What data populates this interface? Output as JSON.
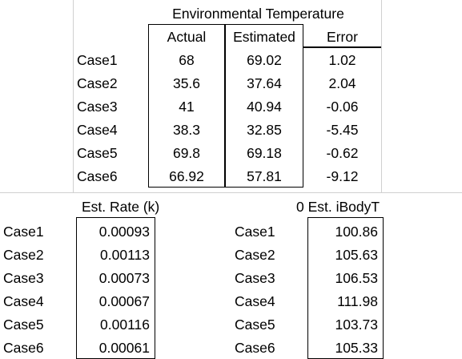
{
  "top_table": {
    "title": "Environmental Temperature",
    "col_actual": "Actual",
    "col_estimated": "Estimated",
    "col_error": "Error",
    "rows": [
      {
        "case": "Case1",
        "actual": "68",
        "estimated": "69.02",
        "error": "1.02"
      },
      {
        "case": "Case2",
        "actual": "35.6",
        "estimated": "37.64",
        "error": "2.04"
      },
      {
        "case": "Case3",
        "actual": "41",
        "estimated": "40.94",
        "error": "-0.06"
      },
      {
        "case": "Case4",
        "actual": "38.3",
        "estimated": "32.85",
        "error": "-5.45"
      },
      {
        "case": "Case5",
        "actual": "69.8",
        "estimated": "69.18",
        "error": "-0.62"
      },
      {
        "case": "Case6",
        "actual": "66.92",
        "estimated": "57.81",
        "error": "-9.12"
      }
    ]
  },
  "rate_table": {
    "header": "Est. Rate (k)",
    "rows": [
      {
        "case": "Case1",
        "value": "0.00093"
      },
      {
        "case": "Case2",
        "value": "0.00113"
      },
      {
        "case": "Case3",
        "value": "0.00073"
      },
      {
        "case": "Case4",
        "value": "0.00067"
      },
      {
        "case": "Case5",
        "value": "0.00116"
      },
      {
        "case": "Case6",
        "value": "0.00061"
      }
    ]
  },
  "body_table": {
    "header": "0 Est. iBodyT",
    "rows": [
      {
        "case": "Case1",
        "value": "100.86"
      },
      {
        "case": "Case2",
        "value": "105.63"
      },
      {
        "case": "Case3",
        "value": "106.53"
      },
      {
        "case": "Case4",
        "value": "111.98"
      },
      {
        "case": "Case5",
        "value": "103.73"
      },
      {
        "case": "Case6",
        "value": "105.33"
      }
    ]
  }
}
